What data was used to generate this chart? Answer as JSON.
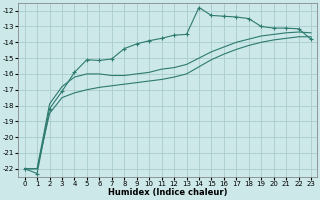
{
  "title": "",
  "xlabel": "Humidex (Indice chaleur)",
  "background_color": "#cce8e8",
  "grid_color": "#aacccc",
  "line_color": "#2d7a6e",
  "xlim": [
    -0.5,
    23.5
  ],
  "ylim": [
    -22.5,
    -11.5
  ],
  "xticks": [
    0,
    1,
    2,
    3,
    4,
    5,
    6,
    7,
    8,
    9,
    10,
    11,
    12,
    13,
    14,
    15,
    16,
    17,
    18,
    19,
    20,
    21,
    22,
    23
  ],
  "yticks": [
    -22,
    -21,
    -20,
    -19,
    -18,
    -17,
    -16,
    -15,
    -14,
    -13,
    -12
  ],
  "curve_marked_x": [
    0,
    1,
    2,
    3,
    4,
    5,
    6,
    7,
    8,
    9,
    10,
    11,
    12,
    13,
    14,
    15,
    16,
    17,
    18,
    19,
    20,
    21,
    22,
    23
  ],
  "curve_marked_y": [
    -22.0,
    -22.3,
    -18.2,
    -17.1,
    -15.9,
    -15.1,
    -15.15,
    -15.05,
    -14.4,
    -14.1,
    -13.9,
    -13.75,
    -13.55,
    -13.5,
    -11.8,
    -12.3,
    -12.35,
    -12.4,
    -12.5,
    -13.0,
    -13.1,
    -13.1,
    -13.15,
    -13.8
  ],
  "smooth_upper_x": [
    0,
    1,
    2,
    3,
    4,
    5,
    6,
    7,
    8,
    9,
    10,
    11,
    12,
    13,
    14,
    15,
    16,
    17,
    18,
    19,
    20,
    21,
    22,
    23
  ],
  "smooth_upper_y": [
    -22.0,
    -22.0,
    -17.9,
    -16.8,
    -16.2,
    -16.0,
    -16.0,
    -16.1,
    -16.1,
    -16.0,
    -15.9,
    -15.7,
    -15.6,
    -15.4,
    -15.0,
    -14.6,
    -14.3,
    -14.0,
    -13.8,
    -13.6,
    -13.5,
    -13.4,
    -13.35,
    -13.4
  ],
  "smooth_lower_x": [
    0,
    1,
    2,
    3,
    4,
    5,
    6,
    7,
    8,
    9,
    10,
    11,
    12,
    13,
    14,
    15,
    16,
    17,
    18,
    19,
    20,
    21,
    22,
    23
  ],
  "smooth_lower_y": [
    -22.0,
    -22.0,
    -18.5,
    -17.5,
    -17.2,
    -17.0,
    -16.85,
    -16.75,
    -16.65,
    -16.55,
    -16.45,
    -16.35,
    -16.2,
    -16.0,
    -15.55,
    -15.1,
    -14.75,
    -14.45,
    -14.2,
    -14.0,
    -13.85,
    -13.75,
    -13.65,
    -13.65
  ],
  "xlabel_fontsize": 6.0,
  "tick_fontsize": 5.0
}
